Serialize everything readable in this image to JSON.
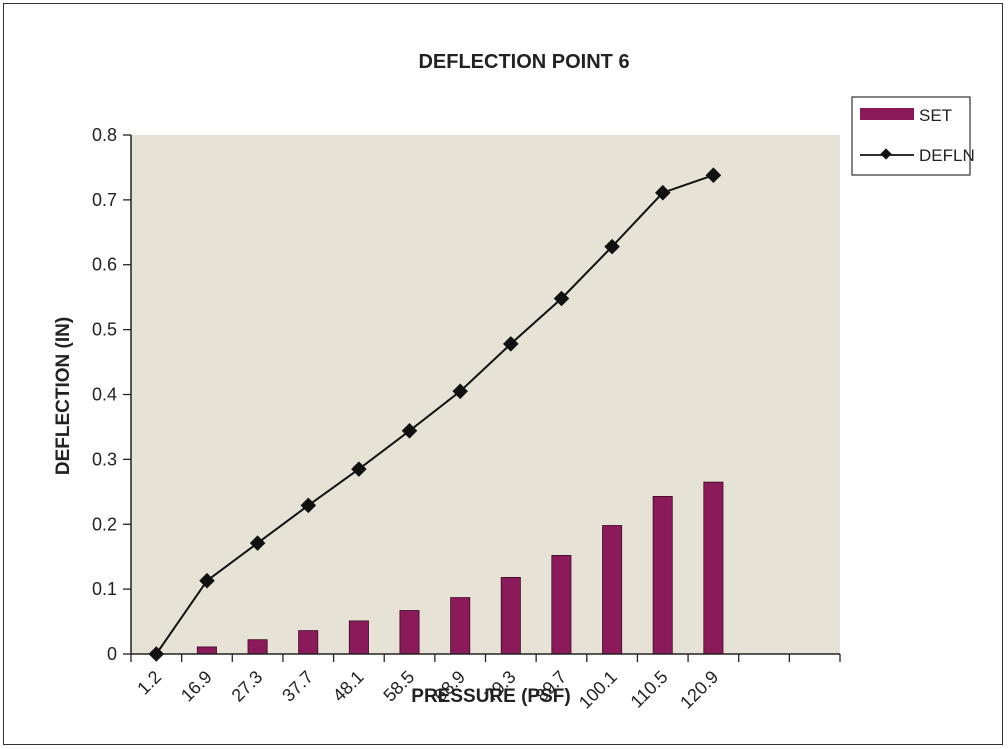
{
  "chart_data": {
    "type": "bar+line",
    "title": "DEFLECTION POINT 6",
    "xlabel": "PRESSURE (PSF)",
    "ylabel": "DEFLECTION (IN)",
    "categories": [
      "1.2",
      "16.9",
      "27.3",
      "37.7",
      "48.1",
      "58.5",
      "68.9",
      "79.3",
      "89.7",
      "100.1",
      "110.5",
      "120.9"
    ],
    "extra_slots": 2,
    "ylim": [
      0,
      0.8
    ],
    "yticks": [
      "0",
      "0.1",
      "0.2",
      "0.3",
      "0.4",
      "0.5",
      "0.6",
      "0.7",
      "0.8"
    ],
    "series": [
      {
        "name": "SET",
        "kind": "bar",
        "color": "#8b1a5a",
        "values": [
          0,
          0.011,
          0.022,
          0.036,
          0.051,
          0.067,
          0.087,
          0.118,
          0.152,
          0.198,
          0.243,
          0.265
        ]
      },
      {
        "name": "DEFLN",
        "kind": "line",
        "color": "#111111",
        "values": [
          0,
          0.113,
          0.171,
          0.229,
          0.285,
          0.344,
          0.405,
          0.478,
          0.548,
          0.628,
          0.711,
          0.738
        ]
      }
    ],
    "plot_background": "#e6e2d6",
    "legend_position": "right",
    "grid": false
  }
}
